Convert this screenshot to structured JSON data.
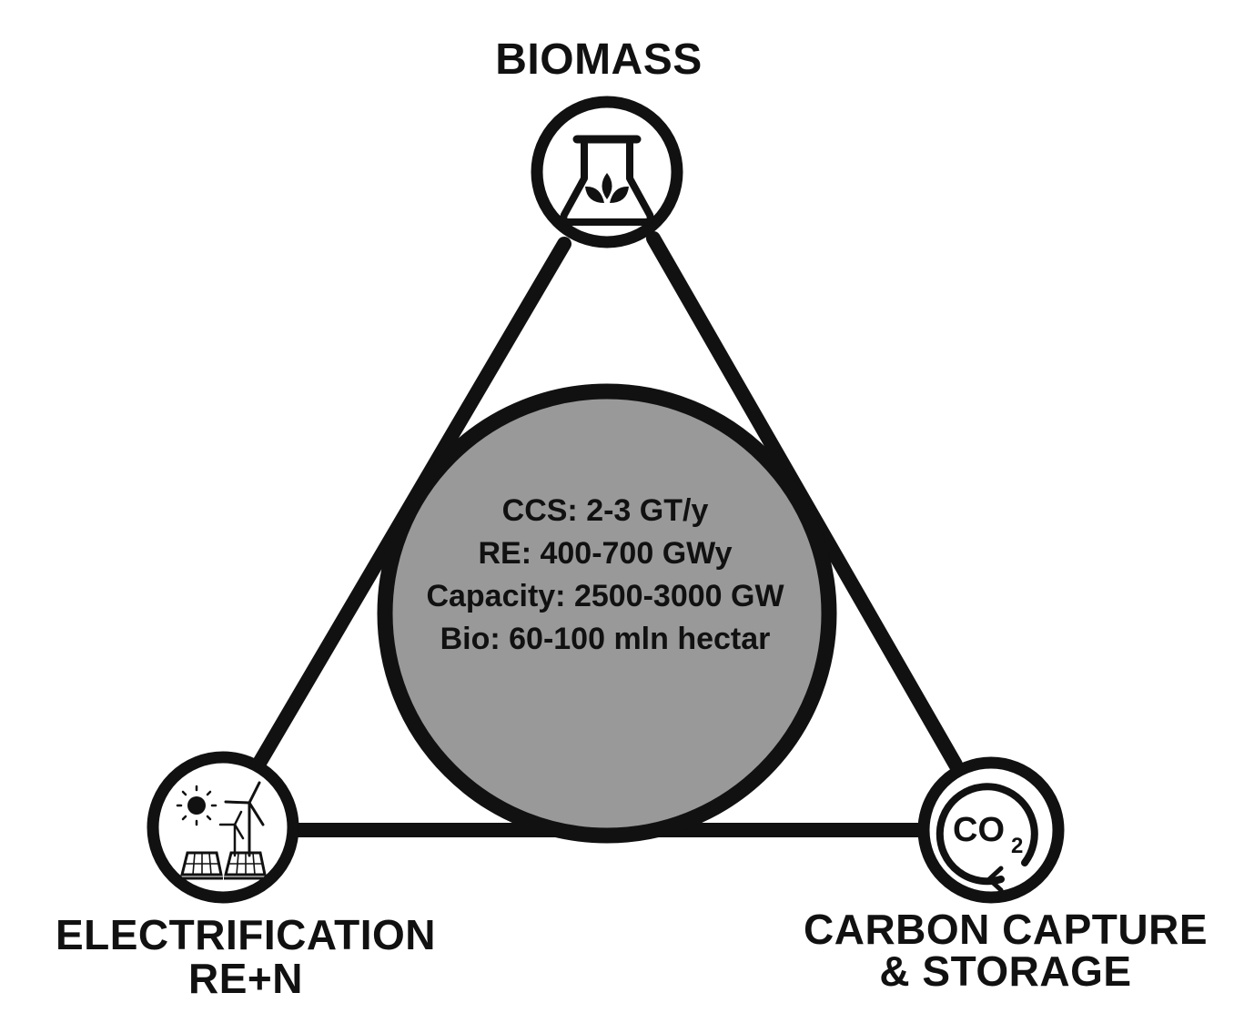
{
  "nodes": {
    "biomass": {
      "label": "BIOMASS",
      "icon": "flask-leaf-icon"
    },
    "electrification": {
      "line1": "ELECTRIFICATION",
      "line2": "RE+N",
      "icon": "solar-wind-icon"
    },
    "ccs": {
      "line1": "CARBON CAPTURE",
      "line2": "& STORAGE",
      "icon": "co2-cycle-icon",
      "co2_text": "CO",
      "co2_sub": "2"
    }
  },
  "center": {
    "lines": [
      "CCS: 2-3 GT/y",
      "RE: 400-700 GWy",
      "Capacity: 2500-3000 GW",
      "Bio: 60-100 mln hectar"
    ]
  },
  "colors": {
    "stroke": "#111111",
    "center_fill": "#999999",
    "background": "#ffffff"
  }
}
